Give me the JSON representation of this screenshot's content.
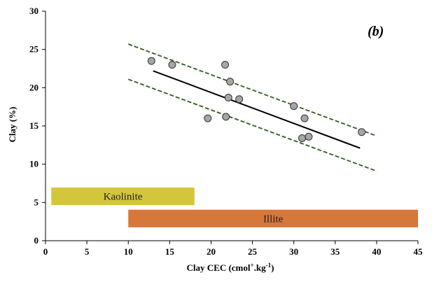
{
  "chart_data": {
    "type": "scatter",
    "panel_label": "(b)",
    "xlabel": "Clay CEC (cmol",
    "xlabel_sup": "+",
    "xlabel_mid": ".kg",
    "xlabel_sup2": "-1",
    "xlabel_end": ")",
    "ylabel": "Clay (%)",
    "xlim": [
      0,
      45
    ],
    "ylim": [
      0,
      30
    ],
    "x_ticks": [
      0,
      5,
      10,
      15,
      20,
      25,
      30,
      35,
      40,
      45
    ],
    "y_ticks": [
      0,
      5,
      10,
      15,
      20,
      25,
      30
    ],
    "grid": false,
    "points": [
      {
        "x": 12.8,
        "y": 23.5
      },
      {
        "x": 15.3,
        "y": 23.0
      },
      {
        "x": 19.6,
        "y": 16.0
      },
      {
        "x": 21.7,
        "y": 23.0
      },
      {
        "x": 21.8,
        "y": 16.2
      },
      {
        "x": 22.1,
        "y": 18.7
      },
      {
        "x": 22.3,
        "y": 20.8
      },
      {
        "x": 23.4,
        "y": 18.5
      },
      {
        "x": 30.0,
        "y": 17.6
      },
      {
        "x": 31.0,
        "y": 13.4
      },
      {
        "x": 31.3,
        "y": 16.0
      },
      {
        "x": 31.8,
        "y": 13.6
      },
      {
        "x": 38.2,
        "y": 14.2
      }
    ],
    "fit_line": {
      "x": [
        13,
        38
      ],
      "y": [
        22.2,
        12.1
      ]
    },
    "upper_band": {
      "x": [
        10,
        40
      ],
      "y": [
        25.7,
        13.7
      ]
    },
    "lower_band": {
      "x": [
        10,
        40
      ],
      "y": [
        21.1,
        9.1
      ]
    },
    "ranges": [
      {
        "label": "Kaolinite",
        "x": [
          0.7,
          18
        ],
        "y_center": 5.8,
        "color": "#d4c63a"
      },
      {
        "label": "Illite",
        "x": [
          10,
          45
        ],
        "y_center": 2.9,
        "color": "#d8773a"
      }
    ],
    "colors": {
      "point_fill": "#a6a6a6",
      "point_stroke": "#333333",
      "fit_line": "#000000",
      "band_line": "#2d5d1a"
    }
  }
}
